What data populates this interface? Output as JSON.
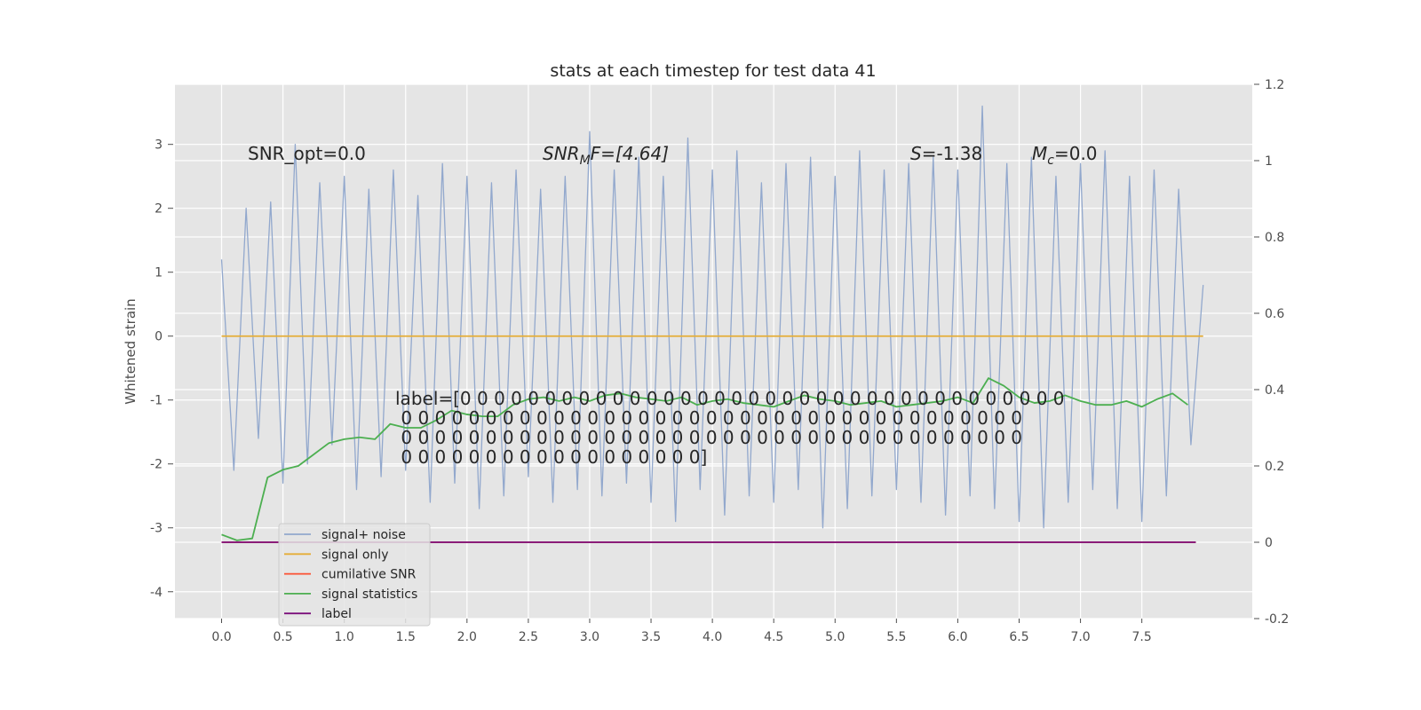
{
  "chart_data": {
    "type": "line",
    "title": "stats at each timestep for test data 41",
    "ylabel": "Whitened strain",
    "xlim": [
      -0.38,
      8.4
    ],
    "ylim": [
      -4.42,
      3.94
    ],
    "y2lim": [
      -0.2,
      1.2
    ],
    "xticks": [
      {
        "value": 0,
        "label": "0.0"
      },
      0.5,
      {
        "value": 1,
        "label": "1.0"
      },
      1.5,
      {
        "value": 2,
        "label": "2.0"
      },
      2.5,
      {
        "value": 3,
        "label": "3.0"
      },
      3.5,
      {
        "value": 4,
        "label": "4.0"
      },
      4.5,
      {
        "value": 5,
        "label": "5.0"
      },
      5.5,
      {
        "value": 6,
        "label": "6.0"
      },
      6.5,
      {
        "value": 7,
        "label": "7.0"
      },
      7.5
    ],
    "yticks": [
      -4,
      -3,
      -2,
      -1,
      0,
      1,
      2,
      3
    ],
    "y2ticks": [
      -0.2,
      0.0,
      0.2,
      0.4,
      0.6,
      0.8,
      1.0,
      1.2
    ],
    "grid": true,
    "series": [
      {
        "name": "signal+ noise",
        "color": "#92a8cd",
        "x": [
          0,
          0.1,
          0.2,
          0.3,
          0.4,
          0.5,
          0.6,
          0.7,
          0.8,
          0.9,
          1,
          1.1,
          1.2,
          1.3,
          1.4,
          1.5,
          1.6,
          1.7,
          1.8,
          1.9,
          2,
          2.1,
          2.2,
          2.3,
          2.4,
          2.5,
          2.6,
          2.7,
          2.8,
          2.9,
          3,
          3.1,
          3.2,
          3.3,
          3.4,
          3.5,
          3.6,
          3.7,
          3.8,
          3.9,
          4,
          4.1,
          4.2,
          4.3,
          4.4,
          4.5,
          4.6,
          4.7,
          4.8,
          4.9,
          5,
          5.1,
          5.2,
          5.3,
          5.4,
          5.5,
          5.6,
          5.7,
          5.8,
          5.9,
          6,
          6.1,
          6.2,
          6.3,
          6.4,
          6.5,
          6.6,
          6.7,
          6.8,
          6.9,
          7,
          7.1,
          7.2,
          7.3,
          7.4,
          7.5,
          7.6,
          7.7,
          7.8,
          7.9,
          8
        ],
        "values": [
          1.2,
          -2.1,
          2.0,
          -1.6,
          2.1,
          -2.3,
          3.0,
          -2.0,
          2.4,
          -1.7,
          2.5,
          -2.4,
          2.3,
          -2.2,
          2.6,
          -2.1,
          2.2,
          -2.6,
          2.7,
          -2.3,
          2.5,
          -2.7,
          2.4,
          -2.5,
          2.6,
          -2.2,
          2.3,
          -2.6,
          2.5,
          -2.4,
          3.2,
          -2.5,
          2.6,
          -2.3,
          2.8,
          -2.6,
          2.5,
          -2.9,
          3.1,
          -2.4,
          2.6,
          -2.8,
          2.9,
          -2.5,
          2.4,
          -2.6,
          2.7,
          -2.4,
          2.8,
          -3.0,
          2.5,
          -2.7,
          2.9,
          -2.5,
          2.6,
          -2.4,
          2.7,
          -2.6,
          2.8,
          -2.8,
          2.6,
          -2.5,
          3.6,
          -2.7,
          2.7,
          -2.9,
          2.8,
          -3.0,
          2.5,
          -2.6,
          2.7,
          -2.4,
          2.9,
          -2.7,
          2.5,
          -2.9,
          2.6,
          -2.5,
          2.3,
          -1.7,
          0.8
        ]
      },
      {
        "name": "signal only",
        "color": "#e5ae38",
        "x": [
          0,
          8
        ],
        "values": [
          0,
          0
        ]
      },
      {
        "name": "cumilative SNR",
        "color": "#fc4f30",
        "axis": "y2",
        "x": [
          0,
          7.94
        ],
        "values": [
          0,
          0
        ]
      },
      {
        "name": "signal statistics",
        "color": "#4caf50",
        "axis": "y2",
        "x": [
          0,
          0.125,
          0.25,
          0.375,
          0.5,
          0.625,
          0.75,
          0.875,
          1,
          1.125,
          1.25,
          1.375,
          1.5,
          1.625,
          1.75,
          1.875,
          2,
          2.125,
          2.25,
          2.375,
          2.5,
          2.625,
          2.75,
          2.875,
          3,
          3.125,
          3.25,
          3.375,
          3.5,
          3.625,
          3.75,
          3.875,
          4,
          4.125,
          4.25,
          4.375,
          4.5,
          4.625,
          4.75,
          4.875,
          5,
          5.125,
          5.25,
          5.375,
          5.5,
          5.625,
          5.75,
          5.875,
          6,
          6.125,
          6.25,
          6.375,
          6.5,
          6.625,
          6.75,
          6.875,
          7,
          7.125,
          7.25,
          7.375,
          7.5,
          7.625,
          7.75,
          7.875
        ],
        "values": [
          0.02,
          0.005,
          0.01,
          0.17,
          0.19,
          0.2,
          0.23,
          0.26,
          0.27,
          0.275,
          0.27,
          0.31,
          0.3,
          0.3,
          0.32,
          0.345,
          0.335,
          0.33,
          0.33,
          0.36,
          0.375,
          0.38,
          0.37,
          0.38,
          0.37,
          0.385,
          0.39,
          0.38,
          0.375,
          0.37,
          0.38,
          0.36,
          0.37,
          0.375,
          0.365,
          0.36,
          0.355,
          0.37,
          0.385,
          0.375,
          0.37,
          0.36,
          0.365,
          0.37,
          0.355,
          0.36,
          0.365,
          0.37,
          0.38,
          0.365,
          0.43,
          0.41,
          0.38,
          0.365,
          0.37,
          0.385,
          0.37,
          0.36,
          0.36,
          0.37,
          0.355,
          0.375,
          0.39,
          0.36
        ]
      },
      {
        "name": "label",
        "color": "#7b0f7b",
        "axis": "y2",
        "x": [
          0,
          7.94
        ],
        "values": [
          0,
          0
        ]
      }
    ],
    "annotations": {
      "snr_opt": "SNR_opt=0.0",
      "snr_mf": [
        "SNR",
        "M",
        "F=[4.64]"
      ],
      "s": [
        "S",
        "=-1.38"
      ],
      "mc": [
        "M",
        "c",
        "=0.0"
      ],
      "label": [
        "label=[0 0 0 0 0 0 0 0 0 0 0 0 0 0 0 0 0 0 0 0 0 0 0 0 0 0 0 0 0 0 0 0 0 0 0 0",
        " 0 0 0 0 0 0 0 0 0 0 0 0 0 0 0 0 0 0 0 0 0 0 0 0 0 0 0 0 0 0 0 0 0 0 0 0 0",
        " 0 0 0 0 0 0 0 0 0 0 0 0 0 0 0 0 0 0 0 0 0 0 0 0 0 0 0 0 0 0 0 0 0 0 0 0 0",
        " 0 0 0 0 0 0 0 0 0 0 0 0 0 0 0 0 0 0]"
      ]
    }
  }
}
